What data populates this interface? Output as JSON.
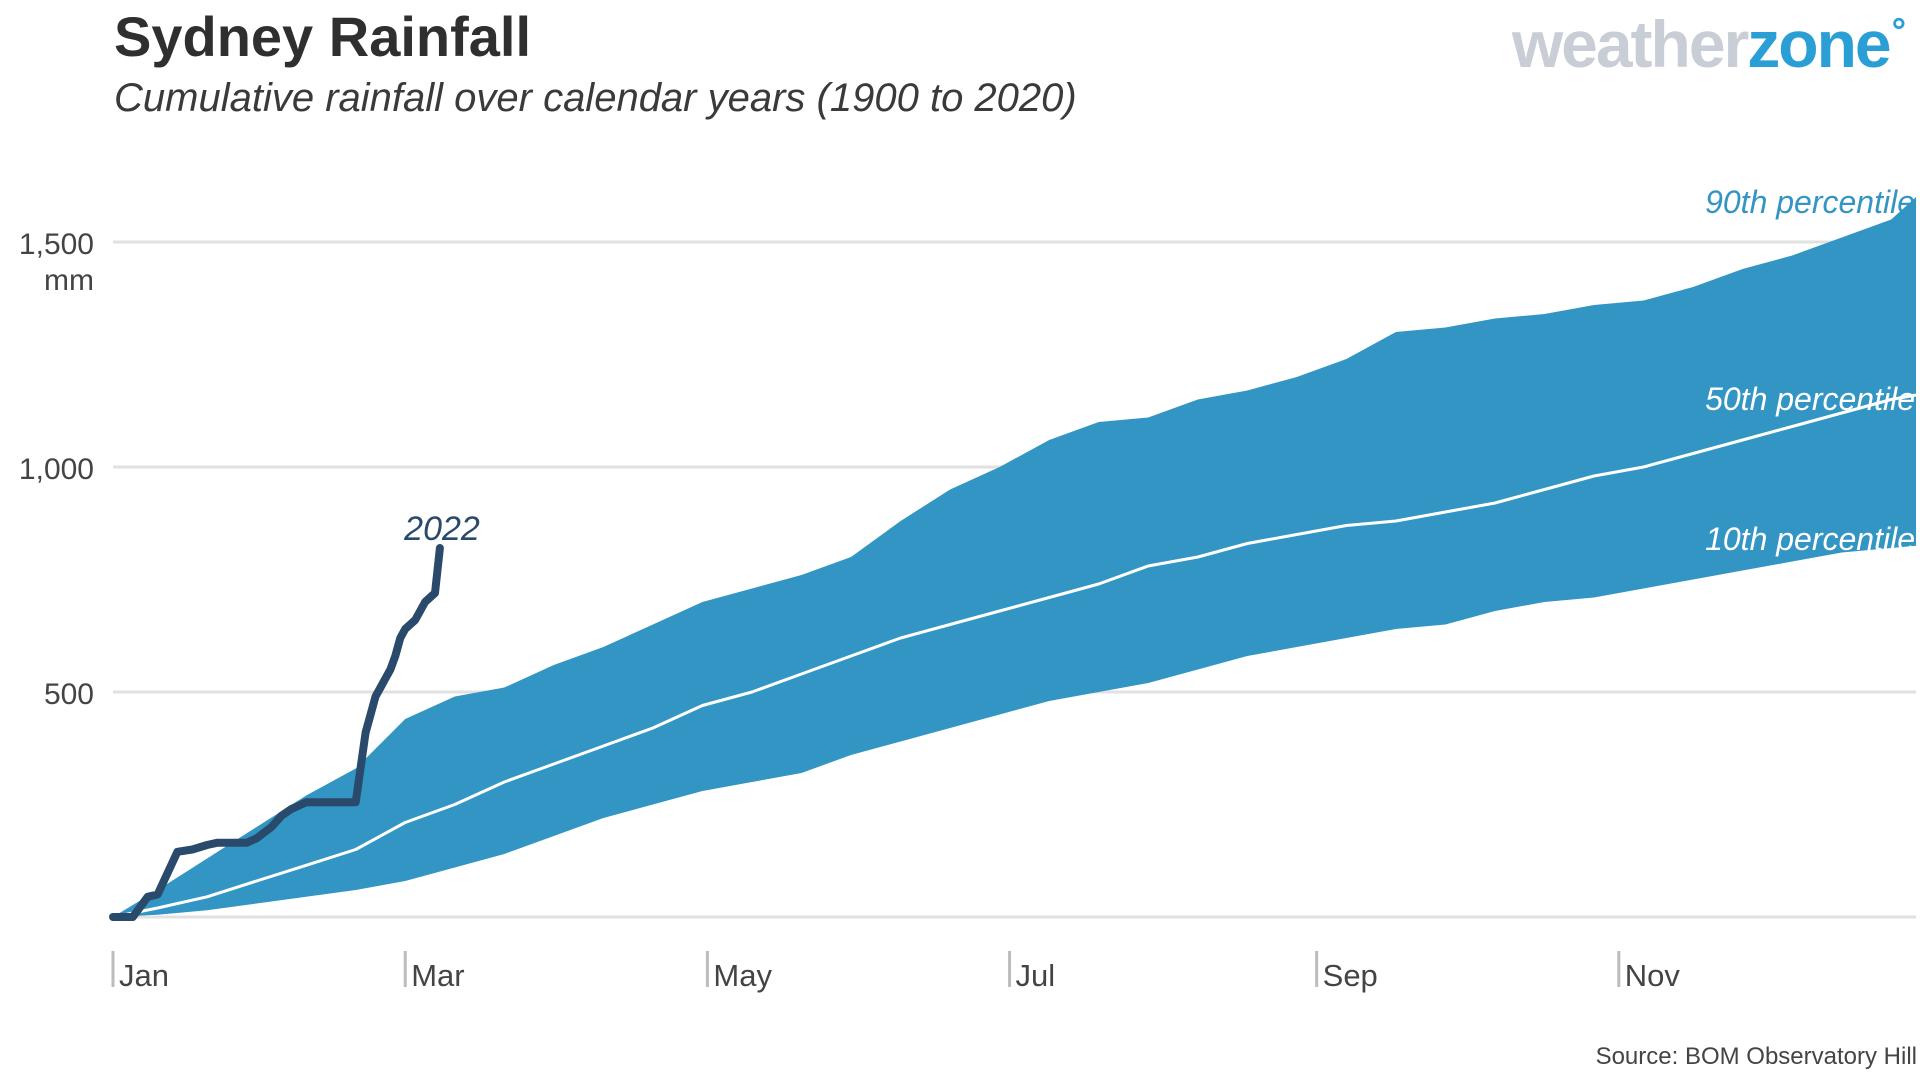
{
  "header": {
    "title": "Sydney Rainfall",
    "subtitle": "Cumulative rainfall over calendar years (1900 to 2020)",
    "logo_part1": "weather",
    "logo_part2": "zone",
    "logo_mark": "°"
  },
  "footer": {
    "source": "Source: BOM Observatory Hill"
  },
  "colors": {
    "band": "#3395c3",
    "median": "#ffffff",
    "series_2022": "#2a4a6b",
    "grid": "#e1e1e1",
    "text": "#444444",
    "percentile_90_label": "#3395c3",
    "logo_grey": "#c9ced6",
    "logo_blue": "#2a9fd6"
  },
  "chart_data": {
    "type": "area",
    "title": "Sydney Rainfall",
    "subtitle": "Cumulative rainfall over calendar years (1900 to 2020)",
    "x_unit": "day of year",
    "xlim": [
      1,
      365
    ],
    "ylim": [
      0,
      1600
    ],
    "y_ticks": [
      {
        "value": 500,
        "label": "500"
      },
      {
        "value": 1000,
        "label": "1,000"
      },
      {
        "value": 1500,
        "label": "1,500"
      }
    ],
    "y_unit_label": "mm",
    "x_ticks": [
      {
        "day": 1,
        "label": "Jan"
      },
      {
        "day": 60,
        "label": "Mar"
      },
      {
        "day": 121,
        "label": "May"
      },
      {
        "day": 182,
        "label": "Jul"
      },
      {
        "day": 244,
        "label": "Sep"
      },
      {
        "day": 305,
        "label": "Nov"
      }
    ],
    "grid": true,
    "series": [
      {
        "name": "90th percentile",
        "label": "90th percentile",
        "x": [
          1,
          10,
          20,
          30,
          40,
          50,
          60,
          70,
          80,
          90,
          100,
          110,
          120,
          130,
          140,
          150,
          160,
          170,
          180,
          190,
          200,
          210,
          220,
          230,
          240,
          250,
          260,
          270,
          280,
          290,
          300,
          310,
          320,
          330,
          340,
          350,
          360,
          365
        ],
        "y": [
          0,
          60,
          130,
          200,
          270,
          330,
          440,
          490,
          510,
          560,
          600,
          650,
          700,
          730,
          760,
          800,
          880,
          950,
          1000,
          1060,
          1100,
          1110,
          1150,
          1170,
          1200,
          1240,
          1300,
          1310,
          1330,
          1340,
          1360,
          1370,
          1400,
          1440,
          1470,
          1510,
          1550,
          1600
        ]
      },
      {
        "name": "50th percentile",
        "label": "50th percentile",
        "x": [
          1,
          10,
          20,
          30,
          40,
          50,
          60,
          70,
          80,
          90,
          100,
          110,
          120,
          130,
          140,
          150,
          160,
          170,
          180,
          190,
          200,
          210,
          220,
          230,
          240,
          250,
          260,
          270,
          280,
          290,
          300,
          310,
          320,
          330,
          340,
          350,
          360,
          365
        ],
        "y": [
          0,
          20,
          45,
          80,
          115,
          150,
          210,
          250,
          300,
          340,
          380,
          420,
          470,
          500,
          540,
          580,
          620,
          650,
          680,
          710,
          740,
          780,
          800,
          830,
          850,
          870,
          880,
          900,
          920,
          950,
          980,
          1000,
          1030,
          1060,
          1090,
          1120,
          1150,
          1160
        ]
      },
      {
        "name": "10th percentile",
        "label": "10th percentile",
        "x": [
          1,
          10,
          20,
          30,
          40,
          50,
          60,
          70,
          80,
          90,
          100,
          110,
          120,
          130,
          140,
          150,
          160,
          170,
          180,
          190,
          200,
          210,
          220,
          230,
          240,
          250,
          260,
          270,
          280,
          290,
          300,
          310,
          320,
          330,
          340,
          350,
          360,
          365
        ],
        "y": [
          0,
          5,
          15,
          30,
          45,
          60,
          80,
          110,
          140,
          180,
          220,
          250,
          280,
          300,
          320,
          360,
          390,
          420,
          450,
          480,
          500,
          520,
          550,
          580,
          600,
          620,
          640,
          650,
          680,
          700,
          710,
          730,
          750,
          770,
          790,
          810,
          820,
          825
        ]
      },
      {
        "name": "2022",
        "label": "2022",
        "x": [
          1,
          5,
          8,
          10,
          14,
          17,
          20,
          22,
          25,
          28,
          30,
          33,
          35,
          37,
          40,
          42,
          45,
          48,
          50,
          52,
          53,
          54,
          55,
          56,
          57,
          58,
          59,
          60,
          62,
          64,
          66,
          67
        ],
        "y": [
          0,
          0,
          45,
          50,
          145,
          150,
          160,
          165,
          165,
          165,
          175,
          200,
          225,
          240,
          255,
          255,
          255,
          255,
          255,
          410,
          450,
          490,
          510,
          530,
          550,
          580,
          620,
          640,
          660,
          700,
          720,
          820
        ]
      }
    ]
  }
}
